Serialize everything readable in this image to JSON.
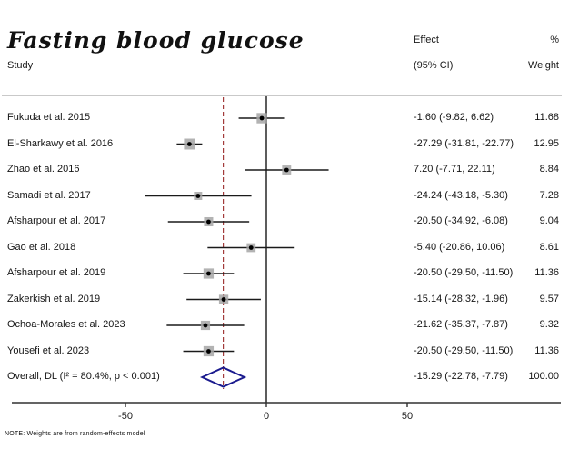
{
  "title": "Fasting blood glucose",
  "headers": {
    "study": "Study",
    "effect_line1": "Effect",
    "effect_line2": "(95% CI)",
    "weight_line1": "%",
    "weight_line2": "Weight"
  },
  "note": "NOTE: Weights are from random-effects model",
  "colors": {
    "ci_line": "#1a1a1a",
    "marker_dot": "#000000",
    "weight_square": "#a6a6a6",
    "diamond": "#1b1b8e",
    "overall_dashed_line": "#a33b3b",
    "zero_line": "#333333",
    "axis": "#303030",
    "top_rule": "#c9c9c9"
  },
  "chart_data": {
    "type": "forest-plot",
    "title": "Fasting blood glucose",
    "x_axis": {
      "ticks": [
        -50,
        0,
        50
      ],
      "tick_labels": [
        "-50",
        "0",
        "50"
      ],
      "zero_line": 0
    },
    "overall_reference_line": -15.29,
    "studies": [
      {
        "name": "Fukuda et al. 2015",
        "effect": -1.6,
        "ci": [
          -9.82,
          6.62
        ],
        "weight": 11.68,
        "effect_label": "-1.60 (-9.82, 6.62)",
        "weight_label": "11.68"
      },
      {
        "name": "El-Sharkawy et al. 2016",
        "effect": -27.29,
        "ci": [
          -31.81,
          -22.77
        ],
        "weight": 12.95,
        "effect_label": "-27.29 (-31.81, -22.77)",
        "weight_label": "12.95"
      },
      {
        "name": "Zhao et al. 2016",
        "effect": 7.2,
        "ci": [
          -7.71,
          22.11
        ],
        "weight": 8.84,
        "effect_label": "7.20 (-7.71, 22.11)",
        "weight_label": "8.84"
      },
      {
        "name": "Samadi et al. 2017",
        "effect": -24.24,
        "ci": [
          -43.18,
          -5.3
        ],
        "weight": 7.28,
        "effect_label": "-24.24 (-43.18, -5.30)",
        "weight_label": "7.28"
      },
      {
        "name": "Afsharpour et al. 2017",
        "effect": -20.5,
        "ci": [
          -34.92,
          -6.08
        ],
        "weight": 9.04,
        "effect_label": "-20.50 (-34.92, -6.08)",
        "weight_label": "9.04"
      },
      {
        "name": "Gao et al. 2018",
        "effect": -5.4,
        "ci": [
          -20.86,
          10.06
        ],
        "weight": 8.61,
        "effect_label": "-5.40 (-20.86, 10.06)",
        "weight_label": "8.61"
      },
      {
        "name": "Afsharpour et al. 2019",
        "effect": -20.5,
        "ci": [
          -29.5,
          -11.5
        ],
        "weight": 11.36,
        "effect_label": "-20.50 (-29.50, -11.50)",
        "weight_label": "11.36"
      },
      {
        "name": "Zakerkish et al. 2019",
        "effect": -15.14,
        "ci": [
          -28.32,
          -1.96
        ],
        "weight": 9.57,
        "effect_label": "-15.14 (-28.32, -1.96)",
        "weight_label": "9.57"
      },
      {
        "name": "Ochoa-Morales et al. 2023",
        "effect": -21.62,
        "ci": [
          -35.37,
          -7.87
        ],
        "weight": 9.32,
        "effect_label": "-21.62 (-35.37, -7.87)",
        "weight_label": "9.32"
      },
      {
        "name": "Yousefi et al. 2023",
        "effect": -20.5,
        "ci": [
          -29.5,
          -11.5
        ],
        "weight": 11.36,
        "effect_label": "-20.50 (-29.50, -11.50)",
        "weight_label": "11.36"
      }
    ],
    "overall": {
      "name": "Overall, DL (I² = 80.4%, p < 0.001)",
      "effect": -15.29,
      "ci": [
        -22.78,
        -7.79
      ],
      "weight": 100.0,
      "effect_label": "-15.29 (-22.78, -7.79)",
      "weight_label": "100.00",
      "heterogeneity_i2": "80.4%",
      "p_value": "p < 0.001",
      "model": "DL"
    }
  }
}
